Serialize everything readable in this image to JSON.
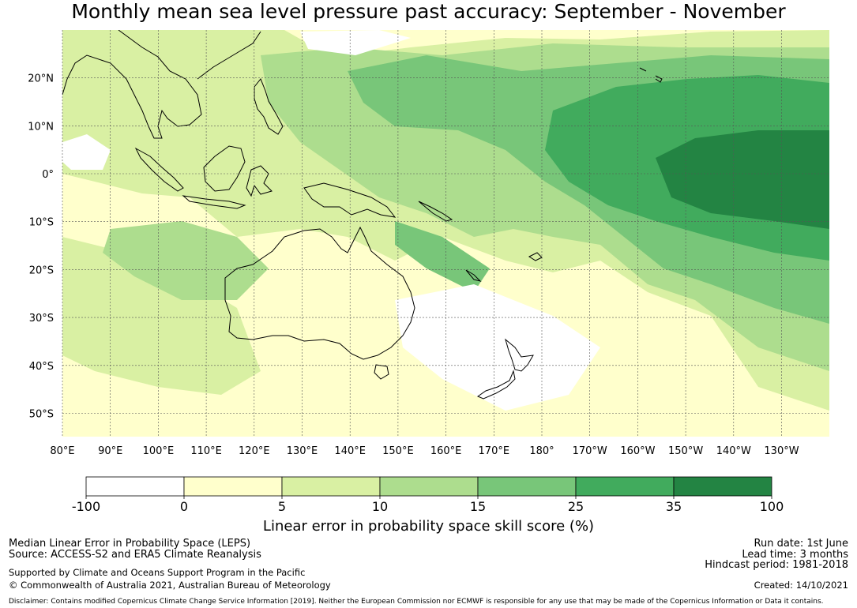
{
  "title": "Monthly mean sea level pressure past accuracy: September - November",
  "map": {
    "lat_labels": [
      "20°N",
      "10°N",
      "0°",
      "10°S",
      "20°S",
      "30°S",
      "40°S",
      "50°S"
    ],
    "lat_values": [
      20,
      10,
      0,
      -10,
      -20,
      -30,
      -40,
      -50
    ],
    "lon_labels": [
      "80°E",
      "90°E",
      "100°E",
      "110°E",
      "120°E",
      "130°E",
      "140°E",
      "150°E",
      "160°E",
      "170°E",
      "180°",
      "170°W",
      "160°W",
      "150°W",
      "140°W",
      "130°W"
    ],
    "lon_values": [
      80,
      90,
      100,
      110,
      120,
      130,
      140,
      150,
      160,
      170,
      180,
      190,
      200,
      210,
      220,
      230
    ]
  },
  "colorbar": {
    "ticks": [
      "-100",
      "0",
      "5",
      "10",
      "15",
      "25",
      "35",
      "100"
    ],
    "colors": [
      "#ffffff",
      "#ffffcc",
      "#d9f0a3",
      "#addd8e",
      "#78c679",
      "#41ab5d",
      "#238443"
    ],
    "label": "Linear error in probability space skill score (%)"
  },
  "footer": {
    "left1": "Median Linear Error in Probability Space (LEPS)",
    "left2": "Source: ACCESS-S2 and ERA5 Climate Reanalysis",
    "left3": "Supported by Climate and Oceans Support Program in the Pacific",
    "left4": "© Commonwealth of Australia 2021, Australian Bureau of Meteorology",
    "right1": "Run date: 1st June",
    "right2": "Lead time: 3 months",
    "right3": "Hindcast period: 1981-2018",
    "right4": "Created: 14/10/2021",
    "disclaimer": "Disclaimer: Contains modified Copernicus Climate Change Service Information [2019]. Neither the European Commission nor ECMWF is responsible for any use that may be made of the Copernicus Information or Data it contains."
  }
}
